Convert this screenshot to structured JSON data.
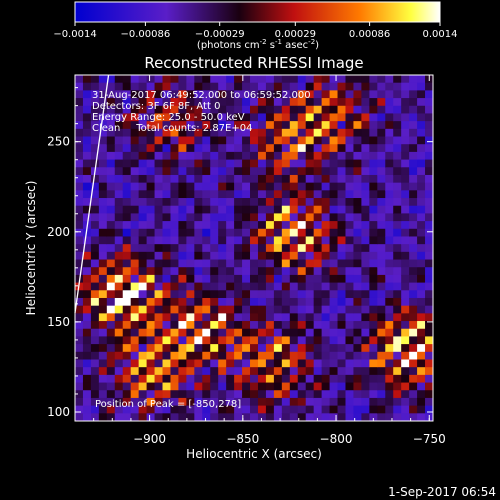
{
  "colorbar": {
    "ticks": [
      "-0.0014",
      "-0.00086",
      "-0.00029",
      "0.00029",
      "0.00086",
      "0.0014"
    ],
    "unit_label": "(photons cm",
    "unit_exp1": "-2",
    "unit_mid": " s",
    "unit_exp2": "-1",
    "unit_mid2": " asec",
    "unit_exp3": "-2",
    "unit_end": ")",
    "range": [
      -0.0014,
      0.0014
    ]
  },
  "chart_data": {
    "type": "heatmap",
    "title": "Reconstructed RHESSI Image",
    "xlabel": "Heliocentric X (arcsec)",
    "ylabel": "Heliocentric Y (arcsec)",
    "xlim": [
      -940,
      -748
    ],
    "ylim": [
      95,
      287
    ],
    "xticks": [
      -900,
      -850,
      -800,
      -750
    ],
    "yticks": [
      100,
      150,
      200,
      250
    ],
    "xtick_labels": [
      "−900",
      "−850",
      "−800",
      "−750"
    ],
    "ytick_labels": [
      "100",
      "150",
      "200",
      "250"
    ],
    "colormap": "blue-purple-red-yellow-white",
    "info_lines": [
      "31-Aug-2017 06:49:52.000 to 06:59:52.000",
      "Detectors: 3F 6F 8F, Att 0",
      "Energy Range: 25.0 - 50.0 keV",
      "Clean     Total counts: 2.87E+04"
    ],
    "peak_label": "Position of Peak = [-850,278]",
    "limb_line": [
      [
        -940,
        155
      ],
      [
        -922,
        287
      ]
    ]
  },
  "footer": {
    "timestamp": "1-Sep-2017 06:54"
  }
}
